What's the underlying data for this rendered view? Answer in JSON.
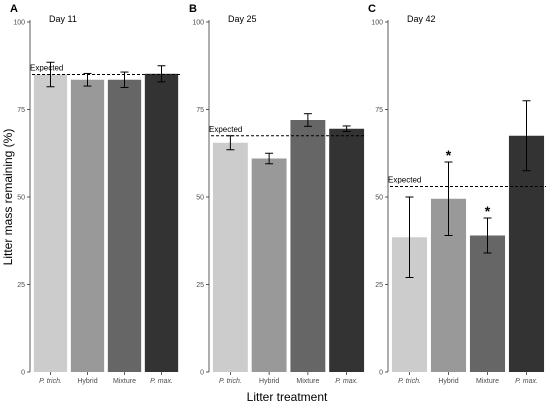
{
  "chart_data": {
    "type": "bar",
    "ylabel": "Litter mass remaining (%)",
    "xlabel": "Litter treatment",
    "ylim": [
      0,
      100
    ],
    "yticks": [
      0,
      25,
      50,
      75,
      100
    ],
    "categories": [
      "P. trich.",
      "Hybrid",
      "Mixture",
      "P. max."
    ],
    "italic_categories": [
      true,
      false,
      false,
      true
    ],
    "bar_colors": [
      "#cccccc",
      "#999999",
      "#666666",
      "#333333"
    ],
    "reference_label": "Expected",
    "panels": [
      {
        "label": "A",
        "title": "Day 11",
        "values": [
          85.0,
          83.5,
          83.5,
          85.2
        ],
        "errors": [
          3.5,
          1.8,
          2.2,
          2.3
        ],
        "expected": 85.0,
        "significant": [
          false,
          false,
          false,
          false
        ]
      },
      {
        "label": "B",
        "title": "Day 25",
        "values": [
          65.5,
          61.0,
          72.0,
          69.5
        ],
        "errors": [
          2.0,
          1.5,
          1.8,
          0.8
        ],
        "expected": 67.5,
        "significant": [
          false,
          false,
          false,
          false
        ]
      },
      {
        "label": "C",
        "title": "Day 42",
        "values": [
          38.5,
          49.5,
          39.0,
          67.5
        ],
        "errors": [
          11.5,
          10.5,
          5.0,
          10.0
        ],
        "expected": 53.0,
        "significant": [
          false,
          true,
          true,
          false
        ],
        "significance_marker": "*"
      }
    ]
  }
}
